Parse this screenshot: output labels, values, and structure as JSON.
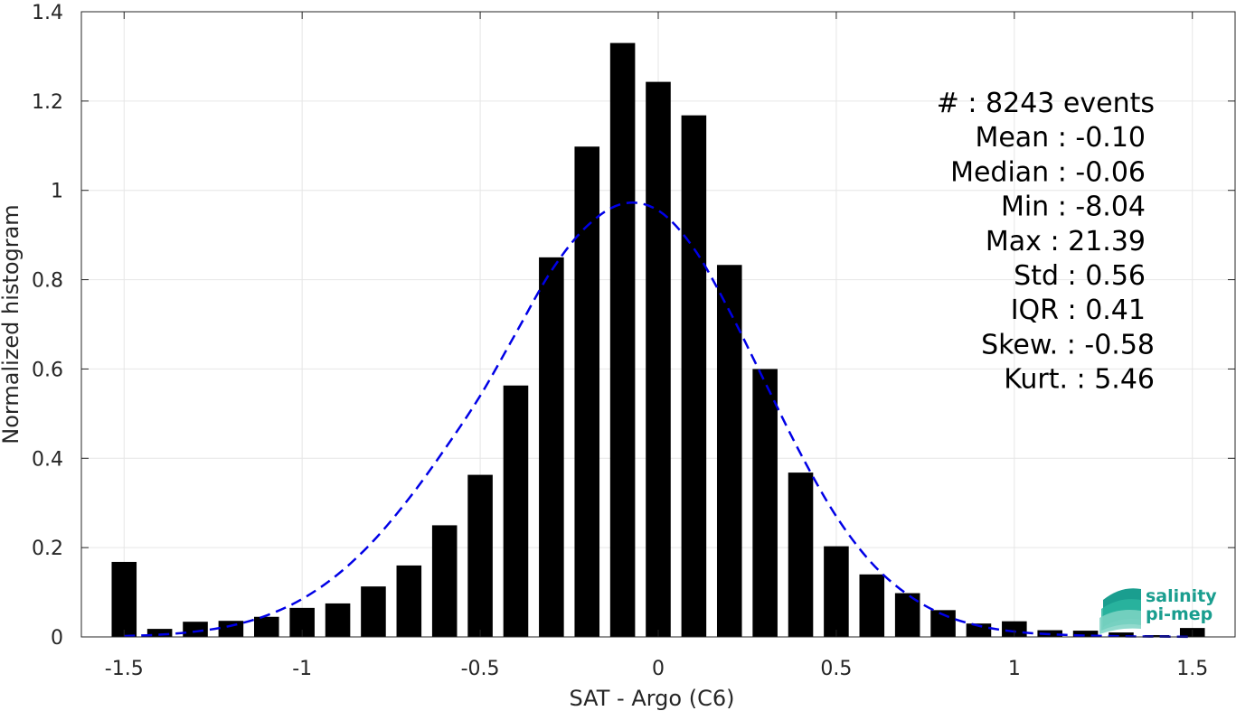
{
  "chart_data": {
    "type": "bar",
    "xlabel": "SAT - Argo (C6)",
    "ylabel": "Normalized histogram",
    "xlim": [
      -1.62,
      1.62
    ],
    "ylim": [
      0,
      1.4
    ],
    "grid": true,
    "x_ticks": [
      {
        "value": -1.5,
        "label": "-1.5"
      },
      {
        "value": -1,
        "label": "-1"
      },
      {
        "value": -0.5,
        "label": "-0.5"
      },
      {
        "value": 0,
        "label": "0"
      },
      {
        "value": 0.5,
        "label": "0.5"
      },
      {
        "value": 1,
        "label": "1"
      },
      {
        "value": 1.5,
        "label": "1.5"
      }
    ],
    "y_ticks": [
      {
        "value": 0,
        "label": "0"
      },
      {
        "value": 0.2,
        "label": "0.2"
      },
      {
        "value": 0.4,
        "label": "0.4"
      },
      {
        "value": 0.6,
        "label": "0.6"
      },
      {
        "value": 0.8,
        "label": "0.8"
      },
      {
        "value": 1,
        "label": "1"
      },
      {
        "value": 1.2,
        "label": "1.2"
      },
      {
        "value": 1.4,
        "label": "1.4"
      }
    ],
    "bin_width": 0.1,
    "bar_color": "#000000",
    "bars": {
      "x": [
        -1.5,
        -1.4,
        -1.3,
        -1.2,
        -1.1,
        -1.0,
        -0.9,
        -0.8,
        -0.7,
        -0.6,
        -0.5,
        -0.4,
        -0.3,
        -0.2,
        -0.1,
        0.0,
        0.1,
        0.2,
        0.3,
        0.4,
        0.5,
        0.6,
        0.7,
        0.8,
        0.9,
        1.0,
        1.1,
        1.2,
        1.3,
        1.4,
        1.5
      ],
      "y": [
        0.168,
        0.018,
        0.034,
        0.036,
        0.045,
        0.065,
        0.075,
        0.113,
        0.16,
        0.25,
        0.363,
        0.563,
        0.85,
        1.098,
        1.33,
        1.243,
        1.168,
        0.833,
        0.6,
        0.368,
        0.203,
        0.14,
        0.098,
        0.06,
        0.03,
        0.035,
        0.015,
        0.014,
        0.01,
        0.004,
        0.02
      ]
    },
    "fit": {
      "style": "dashed",
      "color": "#0000e6",
      "x": [
        -1.5,
        -1.4,
        -1.3,
        -1.2,
        -1.1,
        -1.0,
        -0.9,
        -0.8,
        -0.7,
        -0.6,
        -0.5,
        -0.4,
        -0.3,
        -0.2,
        -0.1,
        0.0,
        0.1,
        0.2,
        0.3,
        0.4,
        0.5,
        0.6,
        0.7,
        0.8,
        0.9,
        1.0,
        1.1,
        1.2,
        1.3,
        1.4,
        1.5
      ],
      "y": [
        0.002,
        0.005,
        0.012,
        0.025,
        0.048,
        0.085,
        0.14,
        0.215,
        0.31,
        0.42,
        0.54,
        0.68,
        0.82,
        0.92,
        0.97,
        0.955,
        0.87,
        0.73,
        0.57,
        0.41,
        0.27,
        0.165,
        0.095,
        0.05,
        0.025,
        0.012,
        0.006,
        0.003,
        0.0015,
        0.0007,
        0.0003
      ]
    },
    "stats": [
      "#  : 8243 events",
      "Mean : -0.10",
      "Median : -0.06",
      "Min : -8.04",
      "Max : 21.39",
      "Std : 0.56",
      "IQR : 0.41",
      "Skew. : -0.58",
      "Kurt. : 5.46"
    ]
  },
  "logo": {
    "line1": "salinity",
    "line2": "pi-mep",
    "colors": [
      "#1a9e8f",
      "#2bb5a0",
      "#7fd3c4"
    ]
  }
}
